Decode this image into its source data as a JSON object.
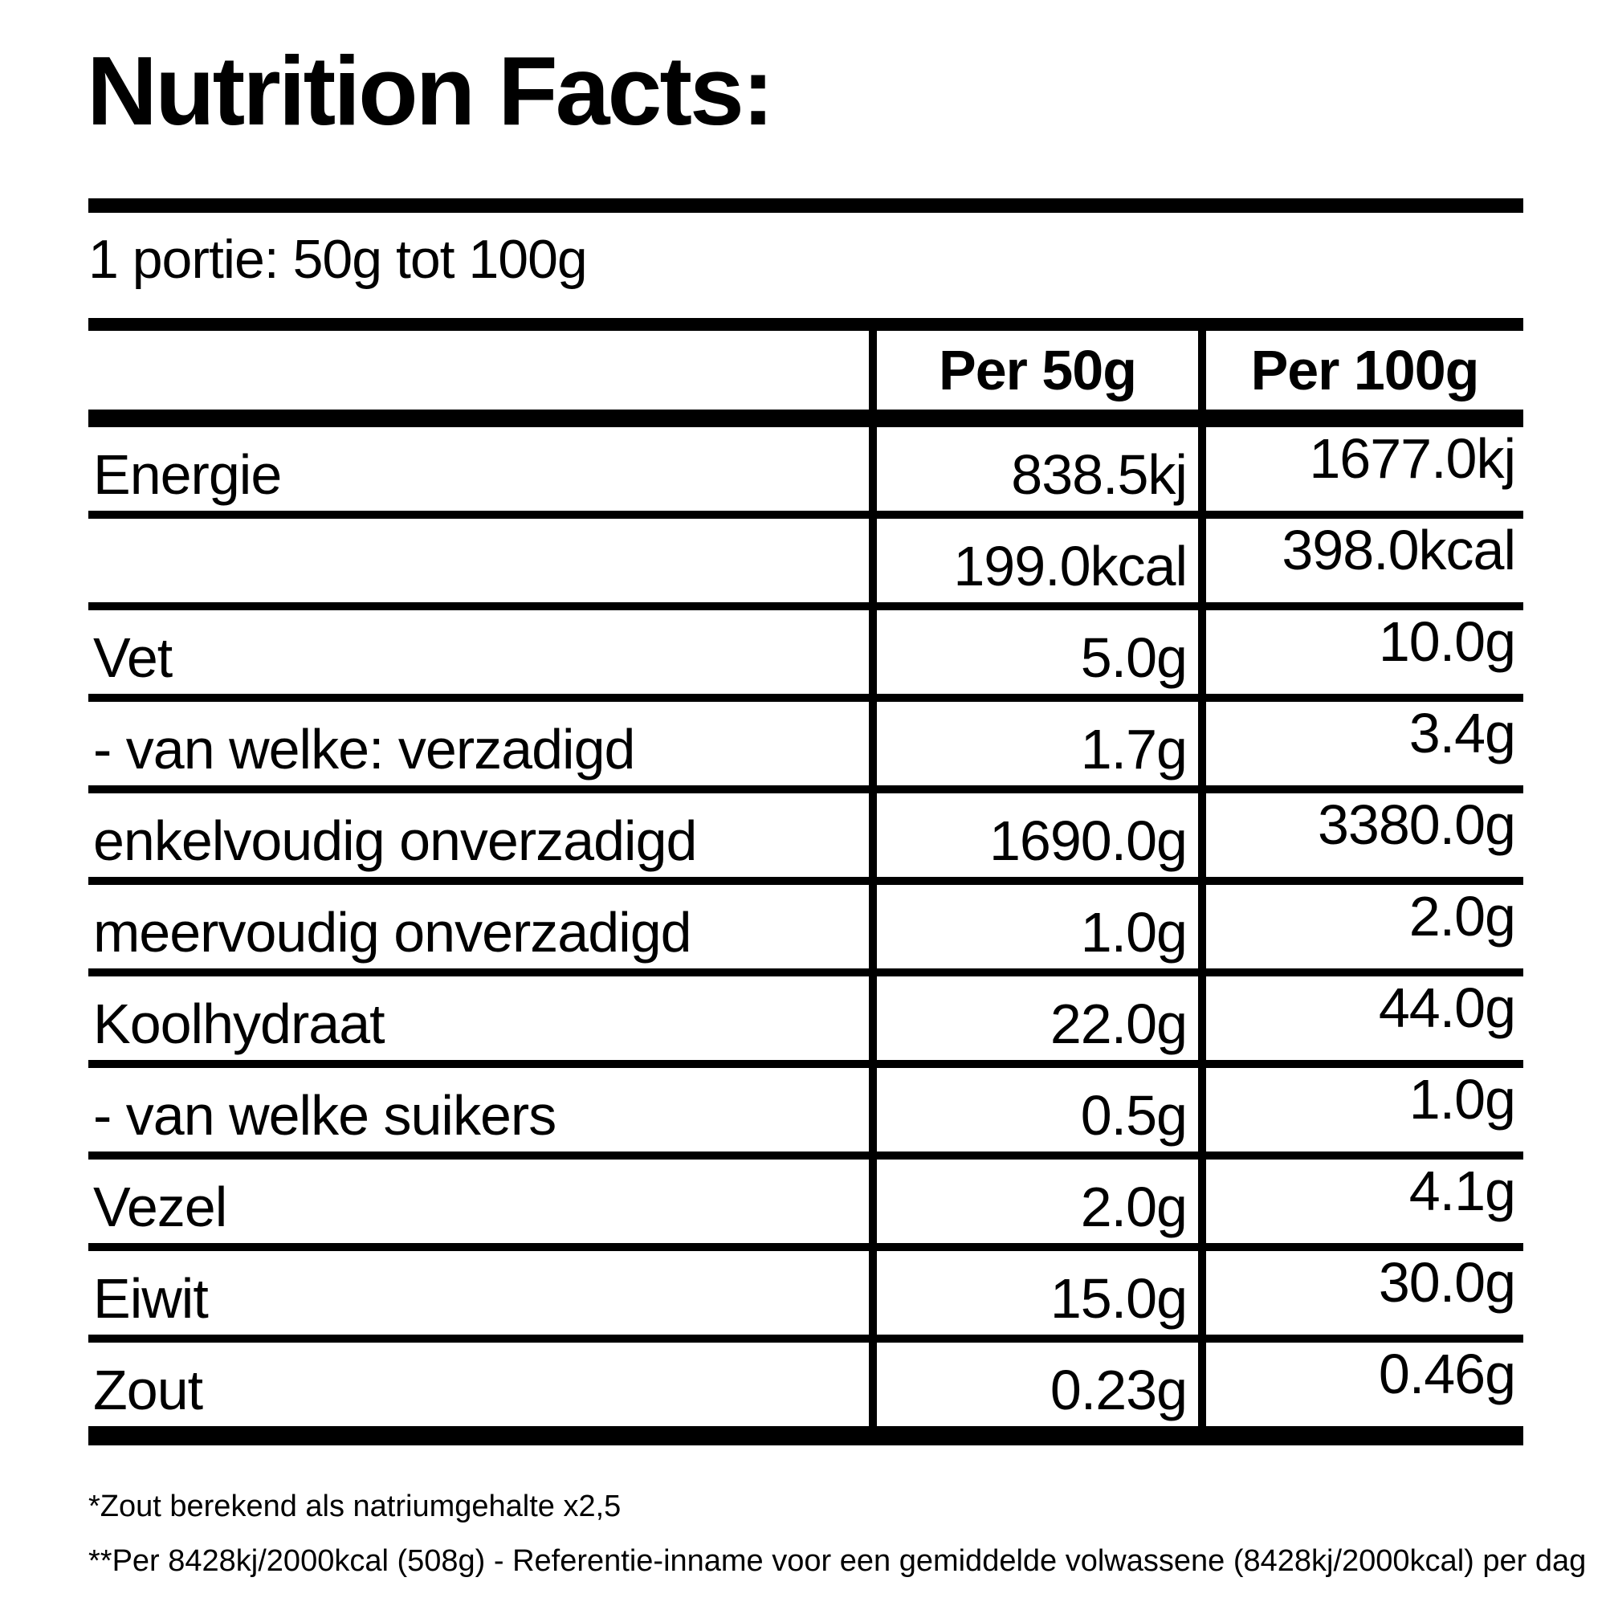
{
  "title": "Nutrition Facts:",
  "serving_line": "1 portie: 50g tot 100g",
  "table": {
    "columns": [
      "",
      "Per 50g",
      "Per 100g"
    ],
    "rows": [
      {
        "label": "Energie",
        "per50": "838.5kj",
        "per100": "1677.0kj"
      },
      {
        "label": "",
        "per50": "199.0kcal",
        "per100": "398.0kcal"
      },
      {
        "label": "Vet",
        "per50": "5.0g",
        "per100": "10.0g"
      },
      {
        "label": "- van welke: verzadigd",
        "per50": "1.7g",
        "per100": "3.4g"
      },
      {
        "label": "enkelvoudig onverzadigd",
        "per50": "1690.0g",
        "per100": "3380.0g"
      },
      {
        "label": "meervoudig onverzadigd",
        "per50": "1.0g",
        "per100": "2.0g"
      },
      {
        "label": "Koolhydraat",
        "per50": "22.0g",
        "per100": "44.0g"
      },
      {
        "label": "- van welke suikers",
        "per50": "0.5g",
        "per100": "1.0g"
      },
      {
        "label": "Vezel",
        "per50": "2.0g",
        "per100": "4.1g"
      },
      {
        "label": "Eiwit",
        "per50": "15.0g",
        "per100": "30.0g"
      },
      {
        "label": "Zout",
        "per50": "0.23g",
        "per100": "0.46g"
      }
    ]
  },
  "footnotes": [
    "*Zout berekend als natriumgehalte x2,5",
    "**Per 8428kj/2000kcal (508g) - Referentie-inname voor een gemiddelde volwassene (8428kj/2000kcal) per dag"
  ],
  "colors": {
    "text": "#000000",
    "background": "#ffffff"
  }
}
